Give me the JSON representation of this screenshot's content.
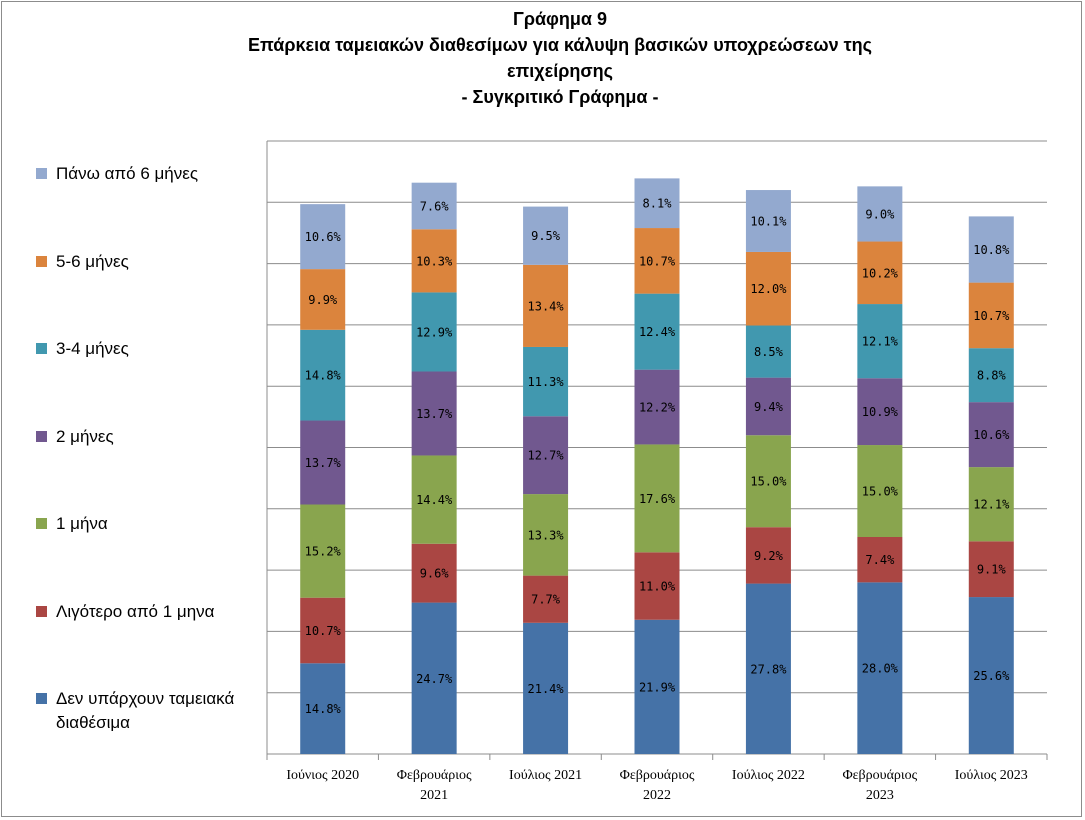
{
  "chart_data": {
    "type": "bar",
    "stacked": true,
    "percent": true,
    "title_lines": [
      "Γράφημα 9",
      "Επάρκεια ταμειακών διαθεσίμων για κάλυψη βασικών υποχρεώσεων της",
      "επιχείρησης",
      "- Συγκριτικό Γράφημα -"
    ],
    "categories": [
      [
        "Ιούνιος 2020"
      ],
      [
        "Φεβρουάριος",
        "2021"
      ],
      [
        "Ιούλιος 2021"
      ],
      [
        "Φεβρουάριος",
        "2022"
      ],
      [
        "Ιούλιος 2022"
      ],
      [
        "Φεβρουάριος",
        "2023"
      ],
      [
        "Ιούλιος 2023"
      ]
    ],
    "ylim": [
      0,
      100
    ],
    "gridlines": 10,
    "legend_position": "left",
    "series": [
      {
        "name_lines": [
          "Δεν υπάρχουν ταμειακά",
          "διαθέσιμα"
        ],
        "color": "#4572a7",
        "values": [
          14.8,
          24.7,
          21.4,
          21.9,
          27.8,
          28.0,
          25.6
        ]
      },
      {
        "name_lines": [
          "Λιγότερο από 1 μηνα"
        ],
        "color": "#aa4643",
        "values": [
          10.7,
          9.6,
          7.7,
          11.0,
          9.2,
          7.4,
          9.1
        ]
      },
      {
        "name_lines": [
          "1 μήνα"
        ],
        "color": "#89a54e",
        "values": [
          15.2,
          14.4,
          13.3,
          17.6,
          15.0,
          15.0,
          12.1
        ]
      },
      {
        "name_lines": [
          "2 μήνες"
        ],
        "color": "#71588f",
        "values": [
          13.7,
          13.7,
          12.7,
          12.2,
          9.4,
          10.9,
          10.6
        ]
      },
      {
        "name_lines": [
          "3-4 μήνες"
        ],
        "color": "#4198af",
        "values": [
          14.8,
          12.9,
          11.3,
          12.4,
          8.5,
          12.1,
          8.8
        ]
      },
      {
        "name_lines": [
          "5-6 μήνες"
        ],
        "color": "#db843d",
        "values": [
          9.9,
          10.3,
          13.4,
          10.7,
          12.0,
          10.2,
          10.7
        ]
      },
      {
        "name_lines": [
          "Πάνω από 6 μήνες"
        ],
        "color": "#93a9cf",
        "values": [
          10.6,
          7.6,
          9.5,
          8.1,
          10.1,
          9.0,
          10.8
        ]
      }
    ]
  }
}
